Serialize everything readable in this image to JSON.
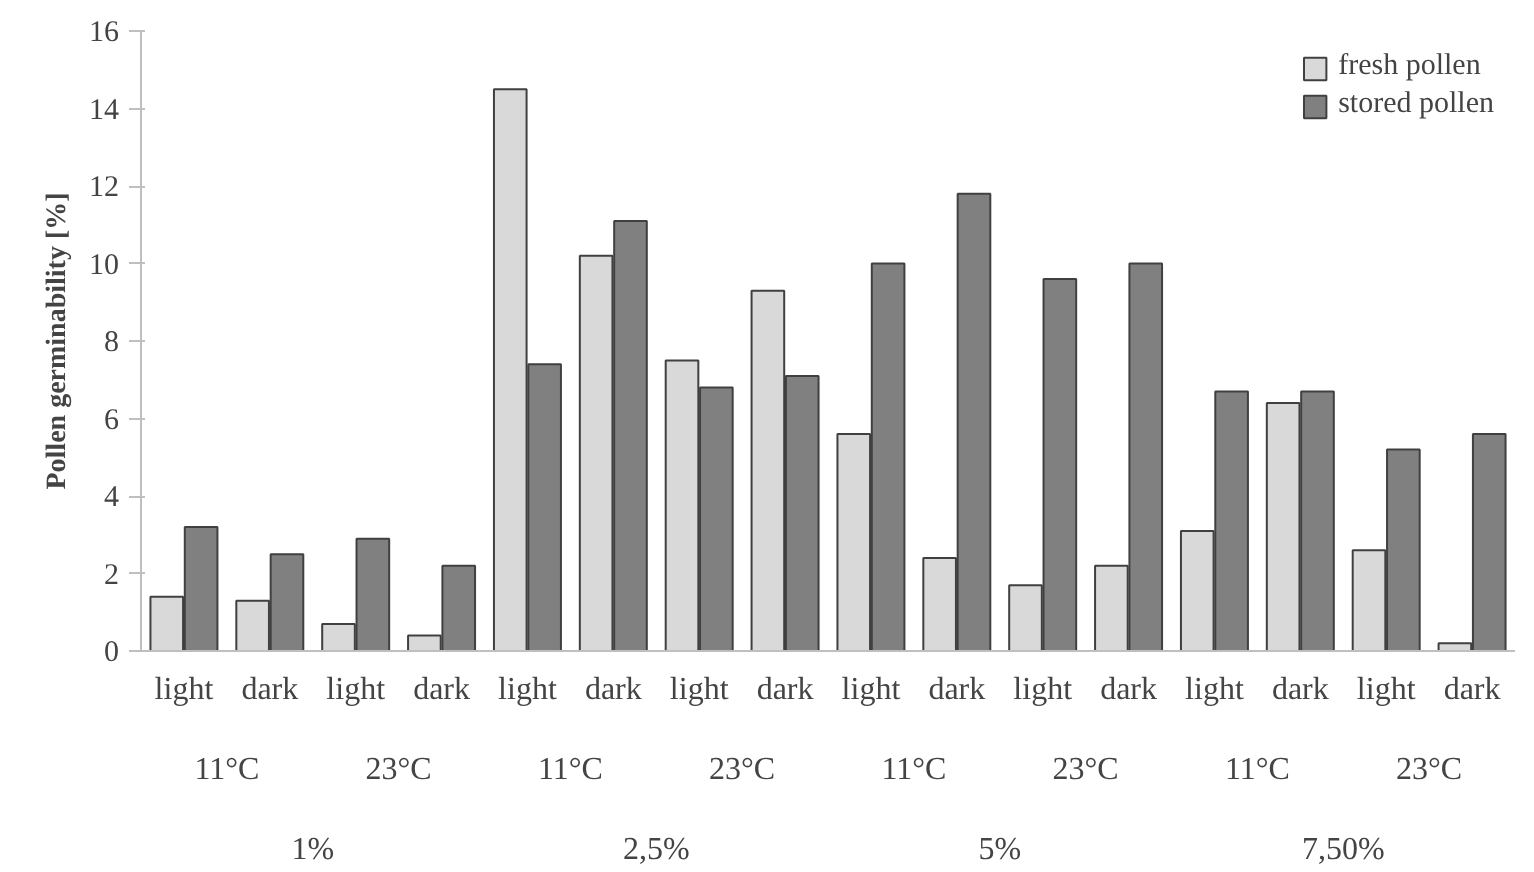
{
  "chart_data": {
    "type": "bar",
    "ylabel": "Pollen germinability [%]",
    "categories": [
      "light",
      "dark",
      "light",
      "dark",
      "light",
      "dark",
      "light",
      "dark",
      "light",
      "dark",
      "light",
      "dark",
      "light",
      "dark",
      "light",
      "dark"
    ],
    "annotations": [
      "11°C",
      "23°C",
      "11°C",
      "23°C",
      "11°C",
      "23°C",
      "11°C",
      "23°C",
      "1%",
      "2,5%",
      "5%",
      "7,50%"
    ],
    "series": [
      {
        "name": "fresh pollen",
        "color": "#d9d9d9",
        "values": [
          1.4,
          1.3,
          0.7,
          0.4,
          14.5,
          10.2,
          7.5,
          9.3,
          5.6,
          2.4,
          1.7,
          2.2,
          3.1,
          6.4,
          2.6,
          0.2
        ]
      },
      {
        "name": "stored pollen",
        "color": "#808080",
        "values": [
          3.2,
          2.5,
          2.9,
          2.2,
          7.4,
          11.1,
          6.8,
          7.1,
          10.0,
          11.8,
          9.6,
          10.0,
          6.7,
          6.7,
          5.2,
          5.6
        ]
      }
    ],
    "ylim": [
      0,
      16
    ],
    "yticks": [
      0,
      2,
      4,
      6,
      8,
      10,
      12,
      14,
      16
    ],
    "grid": false,
    "legend": "top right"
  }
}
